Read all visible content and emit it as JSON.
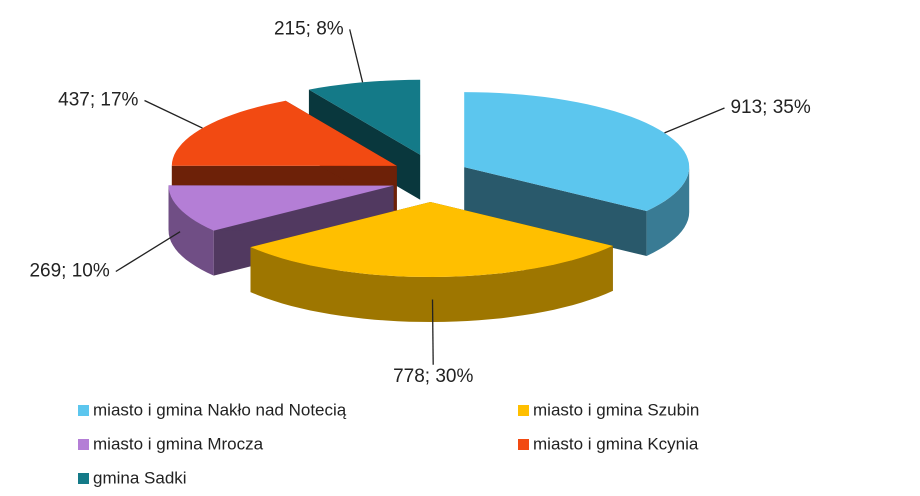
{
  "chart_data": {
    "type": "pie3d",
    "categories": [
      "miasto i gmina Nakło nad Notecią",
      "miasto i gmina Szubin",
      "miasto i gmina Mrocza",
      "miasto i gmina Kcynia",
      "gmina Sadki"
    ],
    "values": [
      913,
      778,
      269,
      437,
      215
    ],
    "value_labels": [
      "913; 35%",
      "778; 30%",
      "269; 10%",
      "437; 17%",
      "215; 8%"
    ],
    "colors": [
      "#5cc6ee",
      "#ffbf00",
      "#b47ed6",
      "#f24a12",
      "#147a88"
    ],
    "legend": "bottom"
  }
}
